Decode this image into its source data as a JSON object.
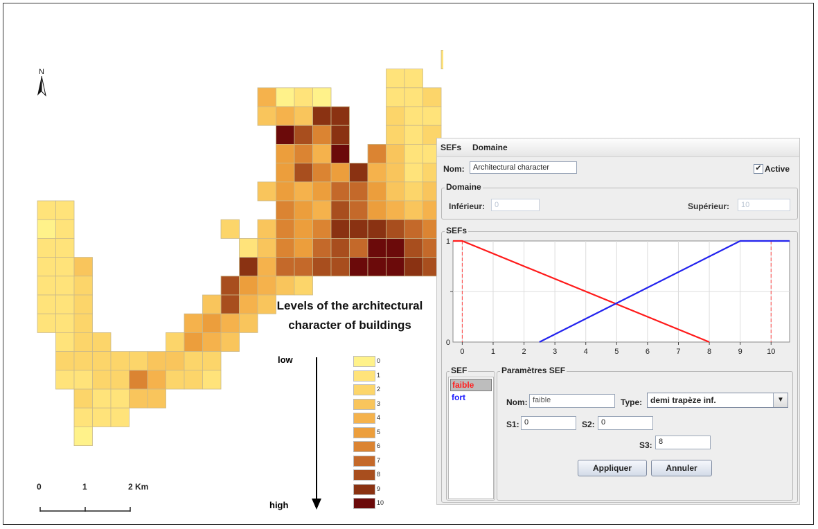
{
  "map": {
    "north_label": "N",
    "scale": {
      "ticks": [
        "0",
        "1",
        "2 Km"
      ]
    },
    "cells": [
      [
        23,
        1,
        1
      ],
      [
        24,
        1,
        0
      ],
      [
        25,
        1,
        0
      ],
      [
        26,
        1,
        0
      ],
      [
        22,
        2,
        1
      ],
      [
        23,
        2,
        1
      ],
      [
        24,
        2,
        1
      ],
      [
        19,
        3,
        1
      ],
      [
        20,
        3,
        1
      ],
      [
        12,
        4,
        4
      ],
      [
        13,
        4,
        0
      ],
      [
        14,
        4,
        1
      ],
      [
        15,
        4,
        0
      ],
      [
        19,
        4,
        1
      ],
      [
        20,
        4,
        1
      ],
      [
        21,
        4,
        2
      ],
      [
        12,
        5,
        3
      ],
      [
        13,
        5,
        4
      ],
      [
        14,
        5,
        3
      ],
      [
        15,
        5,
        9
      ],
      [
        16,
        5,
        9
      ],
      [
        19,
        5,
        2
      ],
      [
        20,
        5,
        1
      ],
      [
        21,
        5,
        1
      ],
      [
        13,
        6,
        10
      ],
      [
        14,
        6,
        8
      ],
      [
        15,
        6,
        6
      ],
      [
        16,
        6,
        9
      ],
      [
        19,
        6,
        2
      ],
      [
        20,
        6,
        1
      ],
      [
        21,
        6,
        2
      ],
      [
        13,
        7,
        5
      ],
      [
        14,
        7,
        6
      ],
      [
        15,
        7,
        4
      ],
      [
        16,
        7,
        10
      ],
      [
        18,
        7,
        6
      ],
      [
        19,
        7,
        3
      ],
      [
        20,
        7,
        1
      ],
      [
        21,
        7,
        1
      ],
      [
        13,
        8,
        5
      ],
      [
        14,
        8,
        8
      ],
      [
        15,
        8,
        6
      ],
      [
        16,
        8,
        5
      ],
      [
        17,
        8,
        9
      ],
      [
        18,
        8,
        4
      ],
      [
        19,
        8,
        3
      ],
      [
        20,
        8,
        1
      ],
      [
        21,
        8,
        2
      ],
      [
        12,
        9,
        3
      ],
      [
        13,
        9,
        5
      ],
      [
        14,
        9,
        4
      ],
      [
        15,
        9,
        5
      ],
      [
        16,
        9,
        7
      ],
      [
        17,
        9,
        7
      ],
      [
        18,
        9,
        5
      ],
      [
        19,
        9,
        3
      ],
      [
        20,
        9,
        2
      ],
      [
        21,
        9,
        3
      ],
      [
        0,
        10,
        1
      ],
      [
        1,
        10,
        1
      ],
      [
        13,
        10,
        6
      ],
      [
        14,
        10,
        5
      ],
      [
        15,
        10,
        4
      ],
      [
        16,
        10,
        8
      ],
      [
        17,
        10,
        7
      ],
      [
        18,
        10,
        5
      ],
      [
        19,
        10,
        4
      ],
      [
        20,
        10,
        3
      ],
      [
        21,
        10,
        4
      ],
      [
        0,
        11,
        0
      ],
      [
        1,
        11,
        1
      ],
      [
        10,
        11,
        2
      ],
      [
        12,
        11,
        3
      ],
      [
        13,
        11,
        6
      ],
      [
        14,
        11,
        5
      ],
      [
        15,
        11,
        6
      ],
      [
        16,
        11,
        9
      ],
      [
        17,
        11,
        9
      ],
      [
        18,
        11,
        9
      ],
      [
        19,
        11,
        8
      ],
      [
        20,
        11,
        7
      ],
      [
        21,
        11,
        6
      ],
      [
        0,
        12,
        1
      ],
      [
        1,
        12,
        1
      ],
      [
        11,
        12,
        1
      ],
      [
        12,
        12,
        3
      ],
      [
        13,
        12,
        6
      ],
      [
        14,
        12,
        5
      ],
      [
        15,
        12,
        7
      ],
      [
        16,
        12,
        8
      ],
      [
        17,
        12,
        7
      ],
      [
        18,
        12,
        10
      ],
      [
        19,
        12,
        10
      ],
      [
        20,
        12,
        8
      ],
      [
        21,
        12,
        7
      ],
      [
        0,
        13,
        1
      ],
      [
        1,
        13,
        1
      ],
      [
        2,
        13,
        3
      ],
      [
        11,
        13,
        9
      ],
      [
        12,
        13,
        4
      ],
      [
        13,
        13,
        7
      ],
      [
        14,
        13,
        7
      ],
      [
        15,
        13,
        8
      ],
      [
        16,
        13,
        8
      ],
      [
        17,
        13,
        10
      ],
      [
        18,
        13,
        10
      ],
      [
        19,
        13,
        10
      ],
      [
        20,
        13,
        9
      ],
      [
        21,
        13,
        8
      ],
      [
        0,
        14,
        1
      ],
      [
        1,
        14,
        1
      ],
      [
        2,
        14,
        2
      ],
      [
        10,
        14,
        8
      ],
      [
        11,
        14,
        5
      ],
      [
        12,
        14,
        4
      ],
      [
        13,
        14,
        3
      ],
      [
        14,
        14,
        2
      ],
      [
        0,
        15,
        1
      ],
      [
        1,
        15,
        1
      ],
      [
        2,
        15,
        2
      ],
      [
        9,
        15,
        3
      ],
      [
        10,
        15,
        8
      ],
      [
        11,
        15,
        4
      ],
      [
        12,
        15,
        3
      ],
      [
        0,
        16,
        1
      ],
      [
        1,
        16,
        1
      ],
      [
        2,
        16,
        2
      ],
      [
        8,
        16,
        4
      ],
      [
        9,
        16,
        5
      ],
      [
        10,
        16,
        4
      ],
      [
        11,
        16,
        3
      ],
      [
        1,
        17,
        1
      ],
      [
        2,
        17,
        2
      ],
      [
        3,
        17,
        2
      ],
      [
        7,
        17,
        2
      ],
      [
        8,
        17,
        5
      ],
      [
        9,
        17,
        4
      ],
      [
        10,
        17,
        3
      ],
      [
        1,
        18,
        2
      ],
      [
        2,
        18,
        2
      ],
      [
        3,
        18,
        2
      ],
      [
        4,
        18,
        2
      ],
      [
        5,
        18,
        2
      ],
      [
        6,
        18,
        3
      ],
      [
        7,
        18,
        3
      ],
      [
        8,
        18,
        2
      ],
      [
        9,
        18,
        2
      ],
      [
        1,
        19,
        1
      ],
      [
        2,
        19,
        1
      ],
      [
        3,
        19,
        2
      ],
      [
        4,
        19,
        2
      ],
      [
        5,
        19,
        6
      ],
      [
        6,
        19,
        4
      ],
      [
        7,
        19,
        2
      ],
      [
        8,
        19,
        2
      ],
      [
        9,
        19,
        1
      ],
      [
        2,
        20,
        2
      ],
      [
        3,
        20,
        1
      ],
      [
        4,
        20,
        1
      ],
      [
        5,
        20,
        3
      ],
      [
        6,
        20,
        3
      ],
      [
        2,
        21,
        1
      ],
      [
        3,
        21,
        1
      ],
      [
        4,
        21,
        1
      ],
      [
        2,
        22,
        0
      ]
    ]
  },
  "legend": {
    "title_line1": "Levels of the architectural",
    "title_line2": "character of buildings",
    "low_label": "low",
    "high_label": "high",
    "levels": [
      {
        "label": "0",
        "color": "#FFF28A"
      },
      {
        "label": "1",
        "color": "#FFE37A"
      },
      {
        "label": "2",
        "color": "#FCD56A"
      },
      {
        "label": "3",
        "color": "#F9C55C"
      },
      {
        "label": "4",
        "color": "#F5B24C"
      },
      {
        "label": "5",
        "color": "#EC9E3C"
      },
      {
        "label": "6",
        "color": "#DB8432"
      },
      {
        "label": "7",
        "color": "#C4692A"
      },
      {
        "label": "8",
        "color": "#A84E1E"
      },
      {
        "label": "9",
        "color": "#8A3212"
      },
      {
        "label": "10",
        "color": "#6B0A0A"
      }
    ]
  },
  "app": {
    "menus": [
      "SEFs",
      "Domaine"
    ],
    "nom_label": "Nom:",
    "nom_value": "Architectural character",
    "active_label": "Active",
    "active_checked": true,
    "domaine_group": "Domaine",
    "inferieur_label": "Inférieur:",
    "inferieur_value": "0",
    "superieur_label": "Supérieur:",
    "superieur_value": "10",
    "sefs_group": "SEFs",
    "sef_group": "SEF",
    "sef_items": [
      {
        "label": "faible",
        "color": "#ff2020",
        "selected": true
      },
      {
        "label": "fort",
        "color": "#1a1aff",
        "selected": false
      }
    ],
    "params_group": "Paramètres SEF",
    "param_nom_label": "Nom:",
    "param_nom_value": "faible",
    "type_label": "Type:",
    "type_value": "demi trapèze inf.",
    "s1_label": "S1:",
    "s1_value": "0",
    "s2_label": "S2:",
    "s2_value": "0",
    "s3_label": "S3:",
    "s3_value": "8",
    "apply_label": "Appliquer",
    "cancel_label": "Annuler"
  },
  "chart_data": {
    "type": "line",
    "x_ticks": [
      "0",
      "1",
      "2",
      "3",
      "4",
      "5",
      "6",
      "7",
      "8",
      "9",
      "10"
    ],
    "y_ticks": [
      "0",
      "1"
    ],
    "xlim": [
      -0.3,
      10.6
    ],
    "ylim": [
      0,
      1
    ],
    "grid": true,
    "series": [
      {
        "name": "faible",
        "color": "#ff1a1a",
        "x": [
          -0.3,
          0,
          8
        ],
        "y": [
          1,
          1,
          0
        ]
      },
      {
        "name": "fort",
        "color": "#2222ee",
        "x": [
          2.5,
          9,
          10.6
        ],
        "y": [
          0,
          1,
          1
        ]
      }
    ],
    "vlines": [
      0,
      10
    ]
  }
}
